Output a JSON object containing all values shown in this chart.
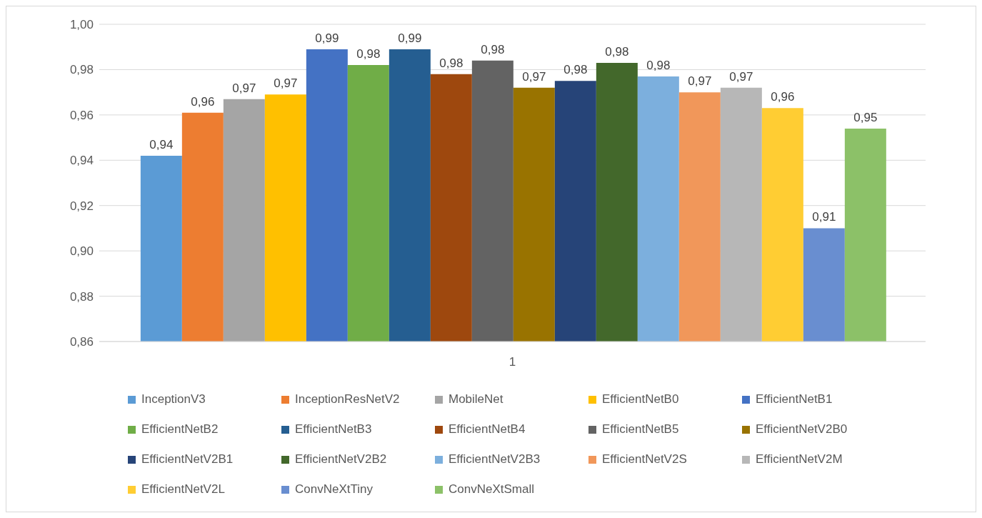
{
  "chart_data": {
    "type": "bar",
    "categories": [
      "1"
    ],
    "series": [
      {
        "name": "InceptionV3",
        "color": "#5b9bd5",
        "values": [
          0.942
        ],
        "value_labels": [
          "0,94"
        ]
      },
      {
        "name": "InceptionResNetV2",
        "color": "#ed7d31",
        "values": [
          0.961
        ],
        "value_labels": [
          "0,96"
        ]
      },
      {
        "name": "MobileNet",
        "color": "#a5a5a5",
        "values": [
          0.967
        ],
        "value_labels": [
          "0,97"
        ]
      },
      {
        "name": "EfficientNetB0",
        "color": "#ffc000",
        "values": [
          0.969
        ],
        "value_labels": [
          "0,97"
        ]
      },
      {
        "name": "EfficientNetB1",
        "color": "#4472c4",
        "values": [
          0.989
        ],
        "value_labels": [
          "0,99"
        ]
      },
      {
        "name": "EfficientNetB2",
        "color": "#70ad47",
        "values": [
          0.982
        ],
        "value_labels": [
          "0,98"
        ]
      },
      {
        "name": "EfficientNetB3",
        "color": "#255e91",
        "values": [
          0.989
        ],
        "value_labels": [
          "0,99"
        ]
      },
      {
        "name": "EfficientNetB4",
        "color": "#9e480e",
        "values": [
          0.978
        ],
        "value_labels": [
          "0,98"
        ]
      },
      {
        "name": "EfficientNetB5",
        "color": "#636363",
        "values": [
          0.984
        ],
        "value_labels": [
          "0,98"
        ]
      },
      {
        "name": "EfficientNetV2B0",
        "color": "#997300",
        "values": [
          0.972
        ],
        "value_labels": [
          "0,97"
        ]
      },
      {
        "name": "EfficientNetV2B1",
        "color": "#264478",
        "values": [
          0.975
        ],
        "value_labels": [
          "0,98"
        ]
      },
      {
        "name": "EfficientNetV2B2",
        "color": "#43682b",
        "values": [
          0.983
        ],
        "value_labels": [
          "0,98"
        ]
      },
      {
        "name": "EfficientNetV2B3",
        "color": "#7cafdd",
        "values": [
          0.977
        ],
        "value_labels": [
          "0,98"
        ]
      },
      {
        "name": "EfficientNetV2S",
        "color": "#f1975a",
        "values": [
          0.97
        ],
        "value_labels": [
          "0,97"
        ]
      },
      {
        "name": "EfficientNetV2M",
        "color": "#b7b7b7",
        "values": [
          0.972
        ],
        "value_labels": [
          "0,97"
        ]
      },
      {
        "name": "EfficientNetV2L",
        "color": "#ffcd33",
        "values": [
          0.963
        ],
        "value_labels": [
          "0,96"
        ]
      },
      {
        "name": "ConvNeXtTiny",
        "color": "#698ed0",
        "values": [
          0.91
        ],
        "value_labels": [
          "0,91"
        ]
      },
      {
        "name": "ConvNeXtSmall",
        "color": "#8cc168",
        "values": [
          0.954
        ],
        "value_labels": [
          "0,95"
        ]
      }
    ],
    "ylim": [
      0.86,
      1.0
    ],
    "yticks": [
      {
        "value": 0.86,
        "label": "0,86"
      },
      {
        "value": 0.88,
        "label": "0,88"
      },
      {
        "value": 0.9,
        "label": "0,90"
      },
      {
        "value": 0.92,
        "label": "0,92"
      },
      {
        "value": 0.94,
        "label": "0,94"
      },
      {
        "value": 0.96,
        "label": "0,96"
      },
      {
        "value": 0.98,
        "label": "0,98"
      },
      {
        "value": 1.0,
        "label": "1,00"
      }
    ],
    "grid": "y",
    "legend": "bottom"
  }
}
